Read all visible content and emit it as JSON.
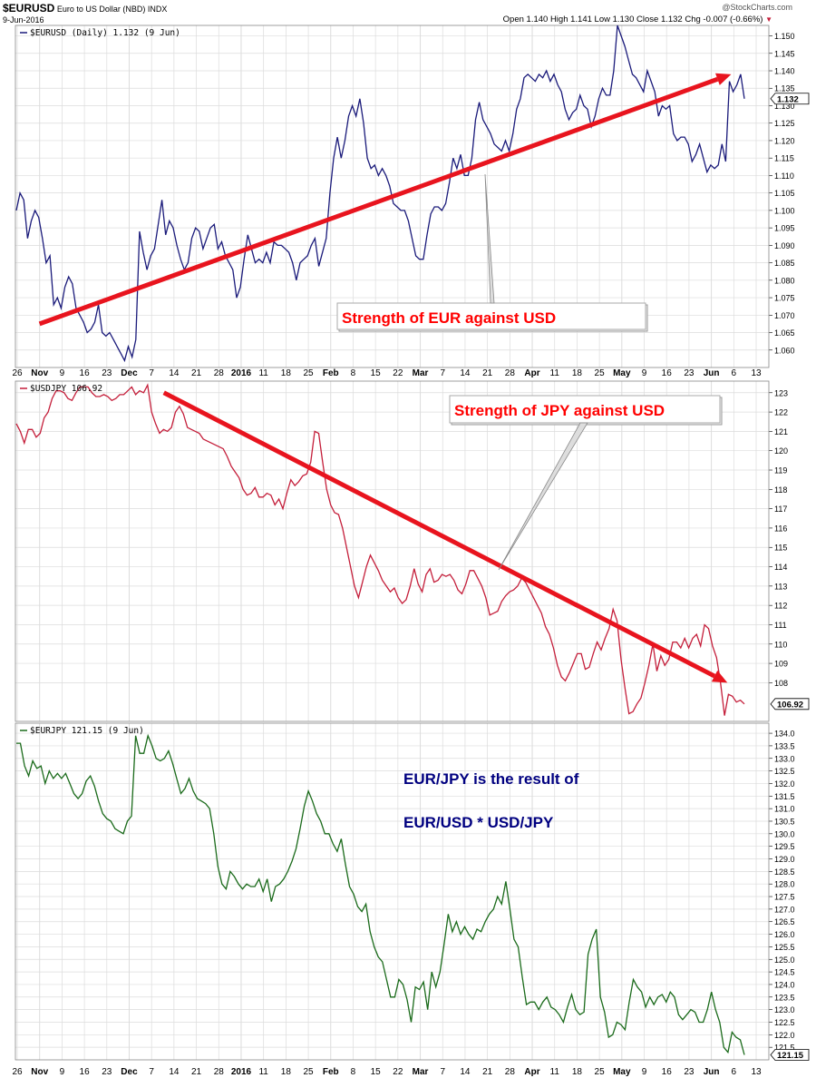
{
  "header": {
    "symbol": "$EURUSD",
    "name": "Euro to US Dollar (NBD)",
    "exchange": "INDX",
    "date": "9-Jun-2016",
    "copyright": "@StockCharts.com",
    "ohlc": "Open 1.140  High 1.141  Low 1.130  Close 1.132  Chg -0.007 (-0.66%)"
  },
  "colors": {
    "eurusd": "#1a1a7a",
    "usdjpy": "#c41e3a",
    "eurjpy": "#1a6a1a",
    "trend": "#e8141e",
    "grid": "#dcdcdc",
    "annotation": "#ff0000",
    "eurjpy_note": "#000080"
  },
  "x_axis": {
    "labels": [
      "26",
      "Nov",
      "9",
      "16",
      "23",
      "Dec",
      "7",
      "14",
      "21",
      "28",
      "2016",
      "11",
      "18",
      "25",
      "Feb",
      "8",
      "15",
      "22",
      "Mar",
      "7",
      "14",
      "21",
      "28",
      "Apr",
      "11",
      "18",
      "25",
      "May",
      "9",
      "16",
      "23",
      "Jun",
      "6",
      "13"
    ],
    "bold": [
      "Nov",
      "Dec",
      "2016",
      "Feb",
      "Mar",
      "Apr",
      "May",
      "Jun"
    ]
  },
  "annotations": {
    "eurusd": "Strength of EUR against USD",
    "usdjpy": "Strength of JPY against USD",
    "eurjpy_line1": "EUR/JPY is the result of",
    "eurjpy_line2": "EUR/USD * USD/JPY"
  },
  "chart_data": [
    {
      "type": "line",
      "legend": "$EURUSD (Daily) 1.132 (9 Jun)",
      "last_value": "1.132",
      "ylim": [
        1.055,
        1.153
      ],
      "yticks": [
        "1.150",
        "1.145",
        "1.140",
        "1.135",
        "1.130",
        "1.125",
        "1.120",
        "1.115",
        "1.110",
        "1.105",
        "1.100",
        "1.095",
        "1.090",
        "1.085",
        "1.080",
        "1.075",
        "1.070",
        "1.065",
        "1.060",
        "1.055"
      ],
      "grid": true,
      "trend": {
        "start": [
          0.032,
          1.0675
        ],
        "end": [
          0.95,
          1.139
        ]
      },
      "values": [
        1.1,
        1.105,
        1.103,
        1.092,
        1.097,
        1.1,
        1.098,
        1.092,
        1.085,
        1.087,
        1.073,
        1.075,
        1.072,
        1.078,
        1.081,
        1.079,
        1.072,
        1.07,
        1.068,
        1.065,
        1.066,
        1.068,
        1.073,
        1.065,
        1.064,
        1.065,
        1.063,
        1.061,
        1.059,
        1.057,
        1.061,
        1.058,
        1.063,
        1.094,
        1.088,
        1.083,
        1.087,
        1.089,
        1.096,
        1.103,
        1.093,
        1.097,
        1.095,
        1.09,
        1.086,
        1.083,
        1.085,
        1.092,
        1.095,
        1.094,
        1.089,
        1.092,
        1.095,
        1.096,
        1.089,
        1.091,
        1.087,
        1.085,
        1.083,
        1.075,
        1.078,
        1.086,
        1.093,
        1.089,
        1.085,
        1.086,
        1.085,
        1.088,
        1.085,
        1.091,
        1.09,
        1.09,
        1.089,
        1.088,
        1.085,
        1.08,
        1.085,
        1.086,
        1.087,
        1.09,
        1.092,
        1.084,
        1.088,
        1.092,
        1.105,
        1.115,
        1.121,
        1.115,
        1.12,
        1.127,
        1.13,
        1.127,
        1.132,
        1.125,
        1.115,
        1.112,
        1.113,
        1.11,
        1.112,
        1.11,
        1.107,
        1.102,
        1.101,
        1.1,
        1.1,
        1.097,
        1.092,
        1.087,
        1.086,
        1.086,
        1.093,
        1.099,
        1.101,
        1.101,
        1.1,
        1.102,
        1.108,
        1.115,
        1.112,
        1.116,
        1.11,
        1.11,
        1.115,
        1.126,
        1.131,
        1.126,
        1.124,
        1.122,
        1.119,
        1.118,
        1.117,
        1.12,
        1.117,
        1.122,
        1.129,
        1.132,
        1.138,
        1.139,
        1.138,
        1.137,
        1.139,
        1.138,
        1.14,
        1.137,
        1.139,
        1.136,
        1.134,
        1.129,
        1.126,
        1.128,
        1.129,
        1.133,
        1.13,
        1.129,
        1.124,
        1.127,
        1.132,
        1.135,
        1.133,
        1.133,
        1.14,
        1.153,
        1.15,
        1.147,
        1.143,
        1.139,
        1.138,
        1.136,
        1.134,
        1.14,
        1.137,
        1.134,
        1.127,
        1.13,
        1.129,
        1.13,
        1.122,
        1.12,
        1.121,
        1.121,
        1.119,
        1.114,
        1.116,
        1.119,
        1.115,
        1.111,
        1.113,
        1.112,
        1.113,
        1.119,
        1.114,
        1.137,
        1.134,
        1.136,
        1.139,
        1.132
      ]
    },
    {
      "type": "line",
      "legend": "$USDJPY 106.92",
      "last_value": "106.92",
      "ylim": [
        106.0,
        123.6
      ],
      "yticks": [
        "123",
        "122",
        "121",
        "120",
        "119",
        "118",
        "117",
        "116",
        "115",
        "114",
        "113",
        "112",
        "111",
        "110",
        "109",
        "108"
      ],
      "grid": true,
      "trend": {
        "start": [
          0.197,
          123.0
        ],
        "end": [
          0.945,
          108.0
        ]
      },
      "values": [
        121.4,
        121.0,
        120.4,
        121.1,
        121.1,
        120.7,
        120.9,
        121.7,
        122.0,
        122.7,
        123.1,
        123.1,
        123.0,
        122.7,
        122.6,
        123.0,
        123.3,
        123.3,
        123.3,
        123.0,
        122.8,
        122.8,
        122.9,
        122.8,
        122.6,
        122.7,
        122.9,
        122.9,
        123.1,
        123.3,
        122.9,
        123.1,
        123.0,
        123.4,
        122.0,
        121.4,
        120.9,
        121.1,
        121.0,
        121.2,
        122.0,
        122.3,
        121.9,
        121.2,
        121.1,
        121.0,
        120.9,
        120.6,
        120.5,
        120.4,
        120.3,
        120.2,
        120.1,
        119.7,
        119.2,
        118.9,
        118.6,
        118.0,
        117.7,
        117.8,
        118.1,
        117.6,
        117.6,
        117.8,
        117.7,
        117.2,
        117.5,
        117.0,
        117.8,
        118.5,
        118.2,
        118.4,
        118.7,
        118.8,
        119.4,
        121.0,
        120.9,
        119.4,
        118.0,
        117.2,
        116.8,
        116.7,
        116.0,
        115.0,
        114.0,
        113.0,
        112.4,
        113.2,
        114.0,
        114.6,
        114.2,
        113.8,
        113.3,
        113.0,
        112.7,
        112.9,
        112.4,
        112.1,
        112.3,
        113.0,
        113.9,
        113.1,
        112.7,
        113.6,
        113.9,
        113.2,
        113.3,
        113.6,
        113.5,
        113.6,
        113.3,
        112.8,
        112.6,
        113.1,
        113.8,
        113.8,
        113.4,
        113.0,
        112.4,
        111.5,
        111.6,
        111.7,
        112.2,
        112.5,
        112.7,
        112.8,
        113.0,
        113.4,
        113.2,
        112.8,
        112.4,
        112.0,
        111.6,
        110.9,
        110.5,
        109.8,
        108.9,
        108.3,
        108.1,
        108.5,
        109.0,
        109.5,
        109.5,
        108.7,
        108.8,
        109.5,
        110.1,
        109.7,
        110.3,
        110.8,
        111.8,
        111.2,
        109.2,
        107.7,
        106.4,
        106.5,
        106.9,
        107.2,
        108.0,
        108.9,
        110.0,
        108.6,
        109.4,
        108.9,
        109.2,
        110.1,
        110.1,
        109.8,
        110.3,
        109.8,
        110.3,
        110.5,
        109.9,
        111.0,
        110.8,
        109.9,
        109.3,
        108.0,
        106.3,
        107.4,
        107.3,
        107.0,
        107.1,
        106.9
      ]
    },
    {
      "type": "line",
      "legend": "$EURJPY 121.15 (9 Jun)",
      "last_value": "121.15",
      "ylim": [
        121.0,
        134.4
      ],
      "yticks": [
        "134.0",
        "133.5",
        "133.0",
        "132.5",
        "132.0",
        "131.5",
        "131.0",
        "130.5",
        "130.0",
        "129.5",
        "129.0",
        "128.5",
        "128.0",
        "127.5",
        "127.0",
        "126.5",
        "126.0",
        "125.5",
        "125.0",
        "124.5",
        "124.0",
        "123.5",
        "123.0",
        "122.5",
        "122.0",
        "121.5"
      ],
      "grid": true,
      "values": [
        133.6,
        133.6,
        132.7,
        132.3,
        132.9,
        132.6,
        132.7,
        132.0,
        132.5,
        132.2,
        132.4,
        132.2,
        132.4,
        132.0,
        131.6,
        131.4,
        131.6,
        132.1,
        132.3,
        131.9,
        131.3,
        130.8,
        130.6,
        130.5,
        130.2,
        130.1,
        130.0,
        130.5,
        130.7,
        133.9,
        133.2,
        133.2,
        133.9,
        133.5,
        133.0,
        132.9,
        133.0,
        133.3,
        132.8,
        132.2,
        131.6,
        131.8,
        132.2,
        131.7,
        131.4,
        131.3,
        131.2,
        131.0,
        130.0,
        128.7,
        128.0,
        127.8,
        128.5,
        128.3,
        128.0,
        127.8,
        128.0,
        127.9,
        127.9,
        128.2,
        127.7,
        128.2,
        127.3,
        127.9,
        128.0,
        128.2,
        128.5,
        128.9,
        129.4,
        130.2,
        131.1,
        131.7,
        131.3,
        130.8,
        130.5,
        130.0,
        130.0,
        129.6,
        129.3,
        129.8,
        128.8,
        127.9,
        127.6,
        127.1,
        126.9,
        127.2,
        126.1,
        125.5,
        125.1,
        124.9,
        124.2,
        123.5,
        123.5,
        124.2,
        124.0,
        123.4,
        122.5,
        123.9,
        123.8,
        124.1,
        123.0,
        124.5,
        123.9,
        124.5,
        125.6,
        126.8,
        126.1,
        126.5,
        126.0,
        126.3,
        126.0,
        125.8,
        126.2,
        126.1,
        126.5,
        126.8,
        127.0,
        127.5,
        127.2,
        128.1,
        127.0,
        125.8,
        125.5,
        124.3,
        123.2,
        123.3,
        123.3,
        123.0,
        123.3,
        123.5,
        123.1,
        123.0,
        122.8,
        122.5,
        123.1,
        123.6,
        123.0,
        122.8,
        122.9,
        125.2,
        125.8,
        126.2,
        123.5,
        122.9,
        121.9,
        122.0,
        122.5,
        122.4,
        122.2,
        123.3,
        124.2,
        123.9,
        123.7,
        123.1,
        123.5,
        123.2,
        123.5,
        123.6,
        123.3,
        123.7,
        123.5,
        122.8,
        122.6,
        122.8,
        123.0,
        122.9,
        122.5,
        122.5,
        123.0,
        123.7,
        123.0,
        122.5,
        121.5,
        121.3,
        122.1,
        121.9,
        121.8,
        121.2
      ]
    }
  ]
}
